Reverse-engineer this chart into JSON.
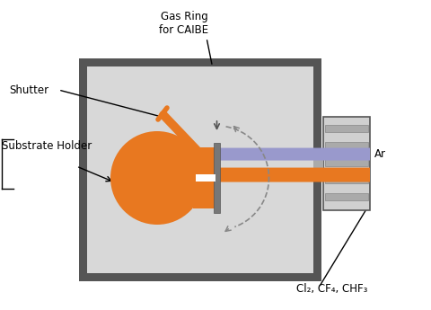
{
  "bg_color": "#ffffff",
  "chamber_color": "#d8d8d8",
  "chamber_border": "#555555",
  "orange_color": "#E87820",
  "blue_color": "#9999CC",
  "gray_light": "#d0d0d0",
  "gray_med": "#aaaaaa",
  "gray_dark": "#888888",
  "labels": {
    "gas_ring": "Gas Ring\nfor CAIBE",
    "shutter": "Shutter",
    "substrate_holder": "Substrate Holder",
    "ar": "Ar",
    "gases": "Cl₂, CF₄, CHF₃"
  },
  "font_size": 8.5
}
